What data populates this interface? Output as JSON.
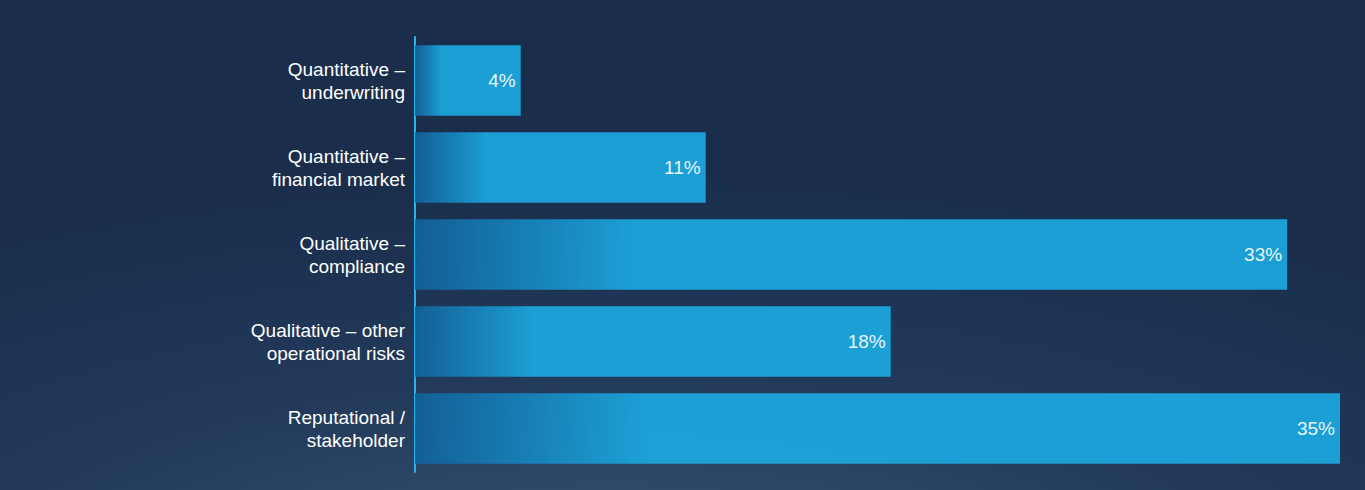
{
  "chart_data": {
    "type": "bar",
    "orientation": "horizontal",
    "categories": [
      "Quantitative – underwriting",
      "Quantitative – financial market",
      "Qualitative – compliance",
      "Qualitative – other operational risks",
      "Reputational / stakeholder"
    ],
    "values": [
      4,
      11,
      33,
      18,
      35
    ],
    "value_labels": [
      "4%",
      "11%",
      "33%",
      "18%",
      "35%"
    ],
    "color": "#1ba8e0",
    "xlim": [
      0,
      35
    ],
    "data_labels": true,
    "tick_labels": "y",
    "grid": false
  }
}
